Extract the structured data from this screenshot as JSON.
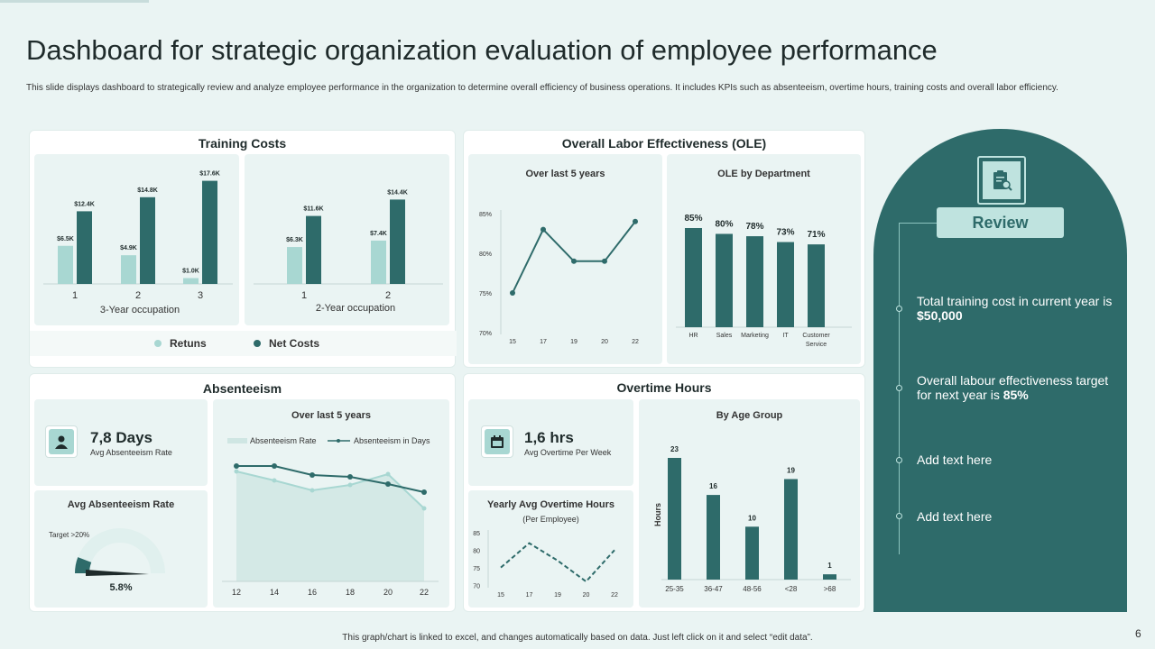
{
  "title": "Dashboard for strategic organization evaluation of employee performance",
  "subtitle": "This slide displays dashboard to strategically review and analyze employee performance in the organization to determine overall efficiency of business operations. It includes KPIs  such as absenteeism, overtime hours, training costs and overall labor efficiency.",
  "training": {
    "title": "Training Costs",
    "chart1": {
      "caption": "3-Year occupation",
      "categories": [
        "1",
        "2",
        "3"
      ],
      "returns": [
        6.5,
        4.9,
        1.0
      ],
      "net": [
        12.4,
        14.8,
        17.6
      ],
      "returns_labels": [
        "$6.5K",
        "$4.9K",
        "$1.0K"
      ],
      "net_labels": [
        "$12.4K",
        "$14.8K",
        "$17.6K"
      ]
    },
    "chart2": {
      "caption": "2-Year occupation",
      "categories": [
        "1",
        "2"
      ],
      "returns": [
        6.3,
        7.4
      ],
      "net": [
        11.6,
        14.4
      ],
      "returns_labels": [
        "$6.3K",
        "$7.4K"
      ],
      "net_labels": [
        "$11.6K",
        "$14.4K"
      ]
    },
    "legend_returns": "Retuns",
    "legend_net": "Net Costs"
  },
  "ole": {
    "title": "Overall Labor Effectiveness (OLE)",
    "line_title": "Over last 5 years",
    "line_x": [
      "15",
      "17",
      "19",
      "20",
      "22"
    ],
    "line_y": [
      75,
      83,
      79,
      79,
      84
    ],
    "line_yticks": [
      "85%",
      "80%",
      "75%",
      "70%"
    ],
    "dept_title": "OLE by Department",
    "dept_categories": [
      "HR",
      "Sales",
      "Marketing",
      "IT",
      "Customer Service"
    ],
    "dept_values": [
      85,
      80,
      78,
      73,
      71
    ],
    "dept_labels": [
      "85%",
      "80%",
      "78%",
      "73%",
      "71%"
    ]
  },
  "absenteeism": {
    "title": "Absenteeism",
    "kpi_value": "7,8 Days",
    "kpi_label": "Avg Absenteeism Rate",
    "gauge_title": "Avg Absenteeism Rate",
    "gauge_target": "Target >20%",
    "gauge_value_label": "5.8%",
    "gauge_value": 5.8,
    "chart_title": "Over last 5 years",
    "legend_rate": "Absenteeism Rate",
    "legend_days": "Absenteeism in Days",
    "x": [
      "12",
      "14",
      "16",
      "18",
      "20",
      "22"
    ]
  },
  "overtime": {
    "title": "Overtime Hours",
    "kpi_value": "1,6 hrs",
    "kpi_label": "Avg Overtime Per Week",
    "yearly_title": "Yearly Avg Overtime Hours",
    "yearly_sub": "(Per Employee)",
    "yearly_x": [
      "15",
      "17",
      "19",
      "20",
      "22"
    ],
    "yearly_y": [
      75,
      82,
      77,
      71,
      80
    ],
    "yearly_yticks": [
      "85",
      "80",
      "75",
      "70"
    ],
    "age_title": "By Age Group",
    "age_ylabel": "Hours",
    "age_categories": [
      "25-35",
      "36-47",
      "48-56",
      "<28",
      ">68"
    ],
    "age_values": [
      23,
      16,
      10,
      19,
      1
    ]
  },
  "review": {
    "title": "Review",
    "items": [
      {
        "pre": "Total training cost in current year is ",
        "bold": "$50,000"
      },
      {
        "pre": "Overall labour effectiveness target for next year is ",
        "bold": "85%"
      },
      {
        "pre": "Add text here",
        "bold": ""
      },
      {
        "pre": "Add text here",
        "bold": ""
      }
    ]
  },
  "footer": "This graph/chart is linked to excel, and changes automatically based on data. Just left click on it and select “edit data”.",
  "page_number": "6",
  "colors": {
    "dark": "#2e6b6a",
    "light": "#a8d7d2",
    "bg": "#eaf4f3"
  }
}
